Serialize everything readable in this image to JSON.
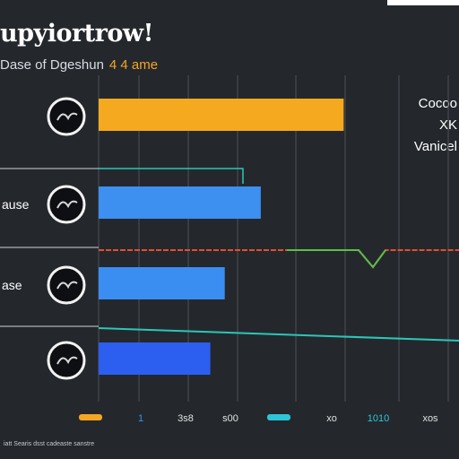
{
  "chart_data": {
    "type": "bar",
    "orientation": "horizontal",
    "title": "upyiortrow!",
    "subtitle": "Dase of Dgeshun",
    "subtitle_accent": "4 4 ame",
    "legend_lines": [
      "Cocoo",
      "XK",
      "Vanicel"
    ],
    "categories": [
      "",
      "ause",
      "ase",
      ""
    ],
    "values": [
      6.8,
      4.5,
      3.5,
      3.1
    ],
    "bar_colors": [
      "#f5a91e",
      "#3d8ff0",
      "#3a8ef2",
      "#2c5ff0"
    ],
    "icon_names": [
      "dark-circle-icon",
      "dark-circle-icon",
      "dark-circle-icon",
      "dark-circle-icon"
    ],
    "xlim": [
      0,
      10
    ],
    "x_tick_labels": [
      "",
      "1",
      "3s8",
      "s00",
      "",
      "xo",
      "1010",
      "xos"
    ],
    "x_tick_colors": [
      "#f5a623",
      "#3d8ff0",
      "#e0e0e0",
      "#e0e0e0",
      "#2cc6d8",
      "#e0e0e0",
      "#2cc6d8",
      "#e0e0e0"
    ],
    "grid": true,
    "legend_position": "right",
    "footer": "iatt Searis dsst cadeaste sanstre"
  }
}
